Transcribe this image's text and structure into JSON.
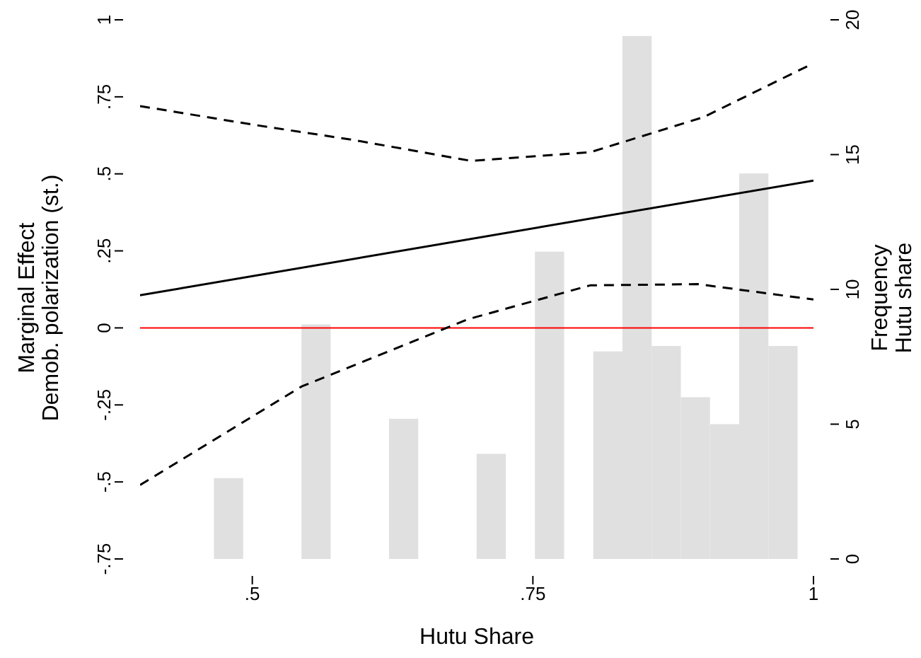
{
  "chart_data": {
    "type": "line",
    "xlabel": "Hutu Share",
    "ylabel": "Marginal Effect\nDemob. polarization (st.)",
    "y2label": "Frequency\nHutu share",
    "xlim": [
      0.4,
      1
    ],
    "xticks": [
      {
        "value": 0.5,
        "label": ".5"
      },
      {
        "value": 0.75,
        "label": ".75"
      },
      1
    ],
    "ylim": [
      -0.75,
      1
    ],
    "yticks": [
      {
        "value": -0.75,
        "label": "-.75"
      },
      {
        "value": -0.5,
        "label": "-.5"
      },
      {
        "value": -0.25,
        "label": "-.25"
      },
      0,
      {
        "value": 0.25,
        "label": ".25"
      },
      {
        "value": 0.5,
        "label": ".5"
      },
      {
        "value": 0.75,
        "label": ".75"
      },
      1
    ],
    "y2lim": [
      0,
      20
    ],
    "y2ticks": [
      0,
      5,
      10,
      15,
      20
    ],
    "marker": "none",
    "series": [
      {
        "type": "histogram",
        "axis": "y2",
        "color": "#e0e0e0",
        "bins": [
          0.466,
          0.492,
          0.518,
          0.544,
          0.57,
          0.596,
          0.622,
          0.648,
          0.674,
          0.7,
          0.726,
          0.752,
          0.778,
          0.804,
          0.83,
          0.856,
          0.882,
          0.908,
          0.934,
          0.96,
          0.986
        ],
        "values": [
          3,
          0,
          0,
          8.7,
          0,
          0,
          5.2,
          0,
          0,
          3.9,
          0,
          11.4,
          0,
          7.7,
          19.4,
          7.9,
          6,
          5,
          14.3,
          7.9
        ]
      },
      {
        "type": "line",
        "color": "#000000",
        "line_style": "solid",
        "x": [
          0.4,
          1
        ],
        "values": [
          0.106,
          0.478
        ]
      },
      {
        "type": "line",
        "color": "#000000",
        "line_style": "dashed",
        "x": [
          0.4,
          0.5,
          0.59,
          0.695,
          0.801,
          0.902,
          1
        ],
        "values": [
          0.72,
          0.66,
          0.61,
          0.542,
          0.57,
          0.684,
          0.859
        ]
      },
      {
        "type": "line",
        "color": "#000000",
        "line_style": "dashed",
        "x": [
          0.4,
          0.544,
          0.692,
          0.801,
          0.897,
          1
        ],
        "values": [
          -0.51,
          -0.19,
          0.028,
          0.138,
          0.142,
          0.092
        ]
      }
    ],
    "ref_lines": [
      {
        "axis": "y",
        "value": 0,
        "color": "#ff0000"
      }
    ]
  }
}
